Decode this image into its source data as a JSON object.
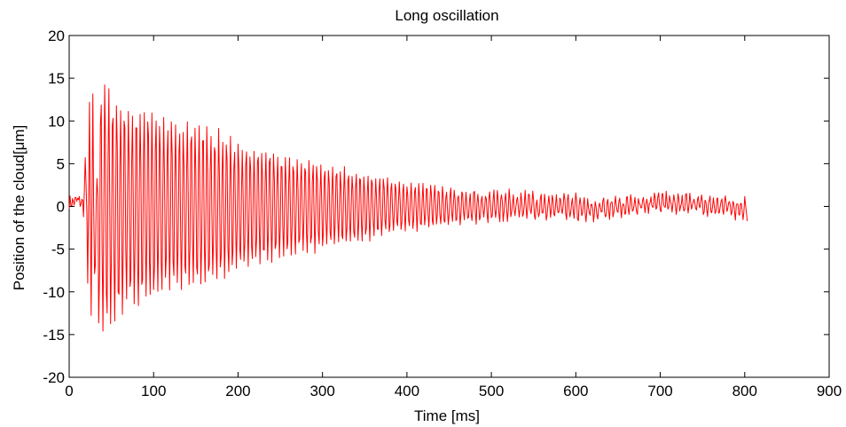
{
  "chart_data": {
    "type": "line",
    "title": "Long oscillation",
    "xlabel": "Time [ms]",
    "ylabel": "Position of the cloud[μm]",
    "xlim": [
      0,
      900
    ],
    "ylim": [
      -20,
      20
    ],
    "xticks": [
      0,
      100,
      200,
      300,
      400,
      500,
      600,
      700,
      800,
      900
    ],
    "yticks": [
      -20,
      -15,
      -10,
      -5,
      0,
      5,
      10,
      15,
      20
    ],
    "xtick_labels": [
      "0",
      "100",
      "200",
      "300",
      "400",
      "500",
      "600",
      "700",
      "800",
      "900"
    ],
    "ytick_labels": [
      "-20",
      "-15",
      "-10",
      "-5",
      "0",
      "5",
      "10",
      "15",
      "20"
    ],
    "grid": false,
    "series": [
      {
        "color": "#ff0000",
        "x": [
          0,
          5,
          10,
          15,
          19,
          20,
          22,
          24,
          26,
          28,
          30,
          35,
          40,
          50,
          60,
          80,
          100,
          130,
          160,
          200,
          250,
          300,
          350,
          400,
          450,
          500,
          550,
          600,
          650,
          700,
          750,
          800,
          803
        ],
        "y_envelope": [
          1.0,
          1.2,
          1.5,
          1.0,
          -5.8,
          13.5,
          -15.7,
          14.8,
          -14.5,
          14.6,
          -14.2,
          15.3,
          15.6,
          14.7,
          13.5,
          12.5,
          11.5,
          10.5,
          10.0,
          8.0,
          6.5,
          5.2,
          4.0,
          3.0,
          2.3,
          1.8,
          1.5,
          1.2,
          1.0,
          0.9,
          1.0,
          1.2,
          1.4
        ]
      }
    ]
  }
}
